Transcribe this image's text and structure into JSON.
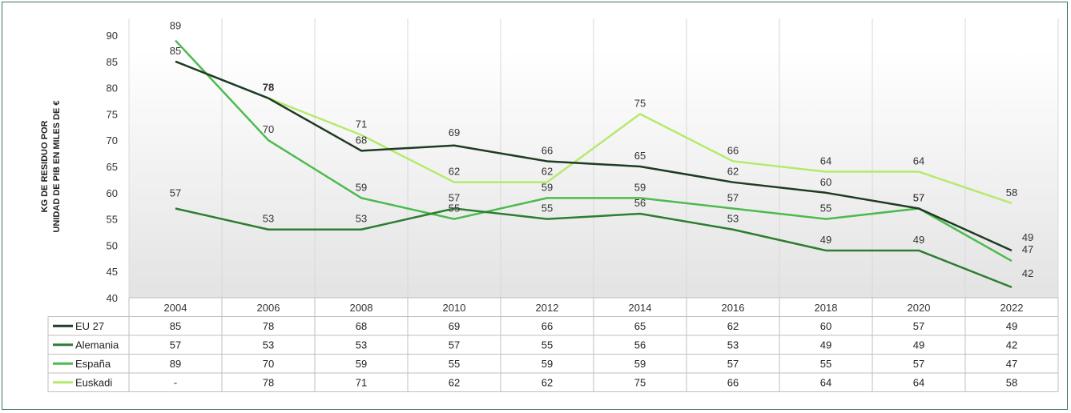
{
  "chart_data": {
    "type": "line",
    "ylabel_lines": [
      "KG DE RESIDUO POR",
      "UNIDAD DE PIB EN MILES DE €"
    ],
    "ylim": [
      40,
      90
    ],
    "yticks": [
      90,
      85,
      80,
      75,
      70,
      65,
      60,
      55,
      50,
      45,
      40
    ],
    "categories": [
      "2004",
      "2006",
      "2008",
      "2010",
      "2012",
      "2014",
      "2016",
      "2018",
      "2020",
      "2022"
    ],
    "grid": "vertical",
    "legend_placement": "data table below chart",
    "series": [
      {
        "name": "EU 27",
        "color": "#1e3b23",
        "values": [
          85,
          78,
          68,
          69,
          66,
          65,
          62,
          60,
          57,
          49
        ],
        "table": [
          "85",
          "78",
          "68",
          "69",
          "66",
          "65",
          "62",
          "60",
          "57",
          "49"
        ]
      },
      {
        "name": "Alemania",
        "color": "#2e7d32",
        "values": [
          57,
          53,
          53,
          57,
          55,
          56,
          53,
          49,
          49,
          42
        ],
        "table": [
          "57",
          "53",
          "53",
          "57",
          "55",
          "56",
          "53",
          "49",
          "49",
          "42"
        ]
      },
      {
        "name": "España",
        "color": "#4cbb4e",
        "values": [
          89,
          70,
          59,
          55,
          59,
          59,
          57,
          55,
          57,
          47
        ],
        "table": [
          "89",
          "70",
          "59",
          "55",
          "59",
          "59",
          "57",
          "55",
          "57",
          "47"
        ]
      },
      {
        "name": "Euskadi",
        "color": "#b5ea6b",
        "values": [
          null,
          78,
          71,
          62,
          62,
          75,
          66,
          64,
          64,
          58
        ],
        "table": [
          "-",
          "78",
          "71",
          "62",
          "62",
          "75",
          "66",
          "64",
          "64",
          "58"
        ]
      }
    ]
  }
}
